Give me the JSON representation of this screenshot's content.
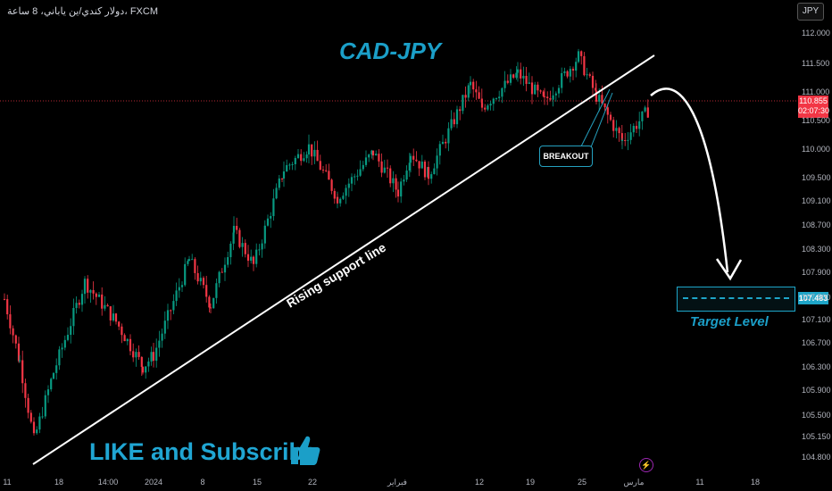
{
  "header": {
    "symbol_line": "دولار كندي/ين ياباني، 8 ساعة، FXCM",
    "currency": "JPY"
  },
  "chart_data": {
    "type": "candlestick",
    "title": "CAD-JPY",
    "annotations": {
      "support_line": "Rising support line",
      "breakout": "BREAKOUT",
      "target_level_label": "Target Level",
      "target_price": "107.483",
      "cta": "LIKE and Subscribe"
    },
    "current_price": {
      "value": "110.855",
      "countdown": "02:07:30"
    },
    "ylim": [
      104.65,
      112.2
    ],
    "y_ticks": [
      "112.000",
      "111.500",
      "111.000",
      "110.500",
      "110.000",
      "109.500",
      "109.100",
      "108.700",
      "108.300",
      "107.900",
      "107.500",
      "107.100",
      "106.700",
      "106.300",
      "105.900",
      "105.500",
      "105.150",
      "104.800"
    ],
    "x_ticks": [
      "11",
      "18",
      "14:00",
      "2024",
      "8",
      "15",
      "22",
      "فبراير",
      "12",
      "19",
      "25",
      "مارس",
      "11",
      "18"
    ],
    "series_close_anchors": [
      {
        "x": "Dec 11",
        "y": 107.5
      },
      {
        "x": "Dec 13",
        "y": 106.4
      },
      {
        "x": "Dec 14",
        "y": 105.0
      },
      {
        "x": "Dec 18",
        "y": 106.2
      },
      {
        "x": "Dec 21",
        "y": 107.8
      },
      {
        "x": "Dec 26",
        "y": 107.1
      },
      {
        "x": "Dec 29",
        "y": 106.3
      },
      {
        "x": "2024",
        "y": 106.5
      },
      {
        "x": "Jan 5",
        "y": 108.2
      },
      {
        "x": "Jan 8",
        "y": 107.4
      },
      {
        "x": "Jan 12",
        "y": 108.7
      },
      {
        "x": "Jan 15",
        "y": 108.1
      },
      {
        "x": "Jan 19",
        "y": 109.8
      },
      {
        "x": "Jan 22",
        "y": 110.2
      },
      {
        "x": "Jan 25",
        "y": 109.3
      },
      {
        "x": "Jan 31",
        "y": 110.1
      },
      {
        "x": "Feb 5",
        "y": 109.4
      },
      {
        "x": "Feb 7",
        "y": 110.1
      },
      {
        "x": "Feb 9",
        "y": 109.7
      },
      {
        "x": "Feb 13",
        "y": 111.3
      },
      {
        "x": "Feb 15",
        "y": 110.9
      },
      {
        "x": "Feb 19",
        "y": 111.5
      },
      {
        "x": "Feb 21",
        "y": 111.0
      },
      {
        "x": "Feb 26",
        "y": 111.8
      },
      {
        "x": "Feb 28",
        "y": 111.1
      },
      {
        "x": "Mar 1",
        "y": 110.3
      },
      {
        "x": "Mar 4",
        "y": 110.86
      }
    ]
  }
}
